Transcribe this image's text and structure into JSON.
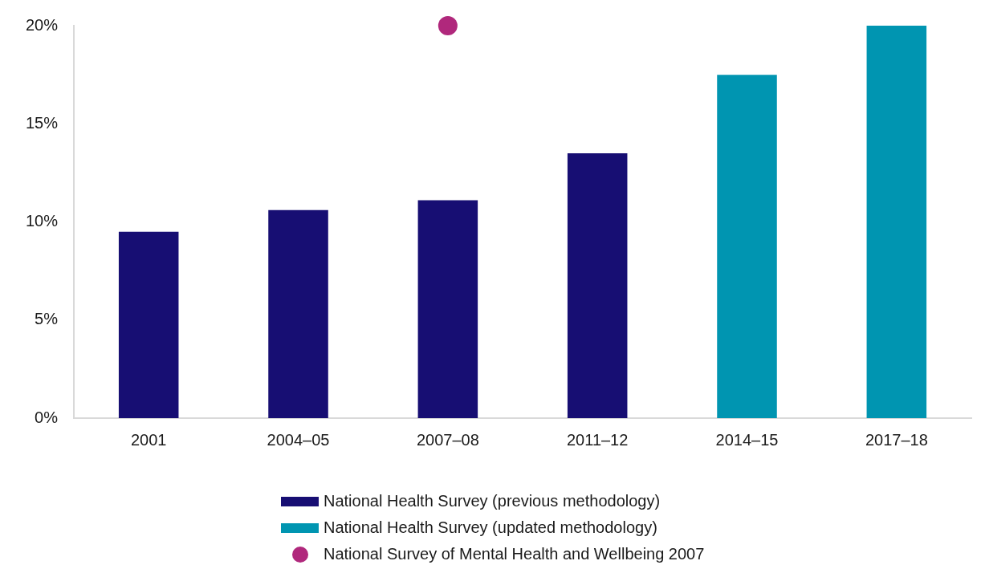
{
  "chart_data": {
    "type": "bar",
    "categories": [
      "2001",
      "2004–05",
      "2007–08",
      "2011–12",
      "2014–15",
      "2017–18"
    ],
    "series": [
      {
        "name": "National Health Survey (previous methodology)",
        "color": "#170e73",
        "values": [
          9.5,
          10.6,
          11.1,
          13.5,
          null,
          null
        ]
      },
      {
        "name": "National Health Survey (updated methodology)",
        "color": "#0095b1",
        "values": [
          null,
          null,
          null,
          null,
          17.5,
          20.0
        ]
      },
      {
        "name": "National Survey of Mental Health and Wellbeing 2007",
        "type": "scatter",
        "color": "#b0287c",
        "x": [
          "2007–08"
        ],
        "values": [
          20
        ]
      }
    ],
    "ylim": [
      0,
      20
    ],
    "yticks": [
      {
        "value": 0,
        "label": "0%"
      },
      {
        "value": 5,
        "label": "5%"
      },
      {
        "value": 10,
        "label": "10%"
      },
      {
        "value": 15,
        "label": "15%"
      },
      {
        "value": 20,
        "label": "20%"
      }
    ],
    "grid": false,
    "legend": "bottom",
    "marker": "circle"
  }
}
